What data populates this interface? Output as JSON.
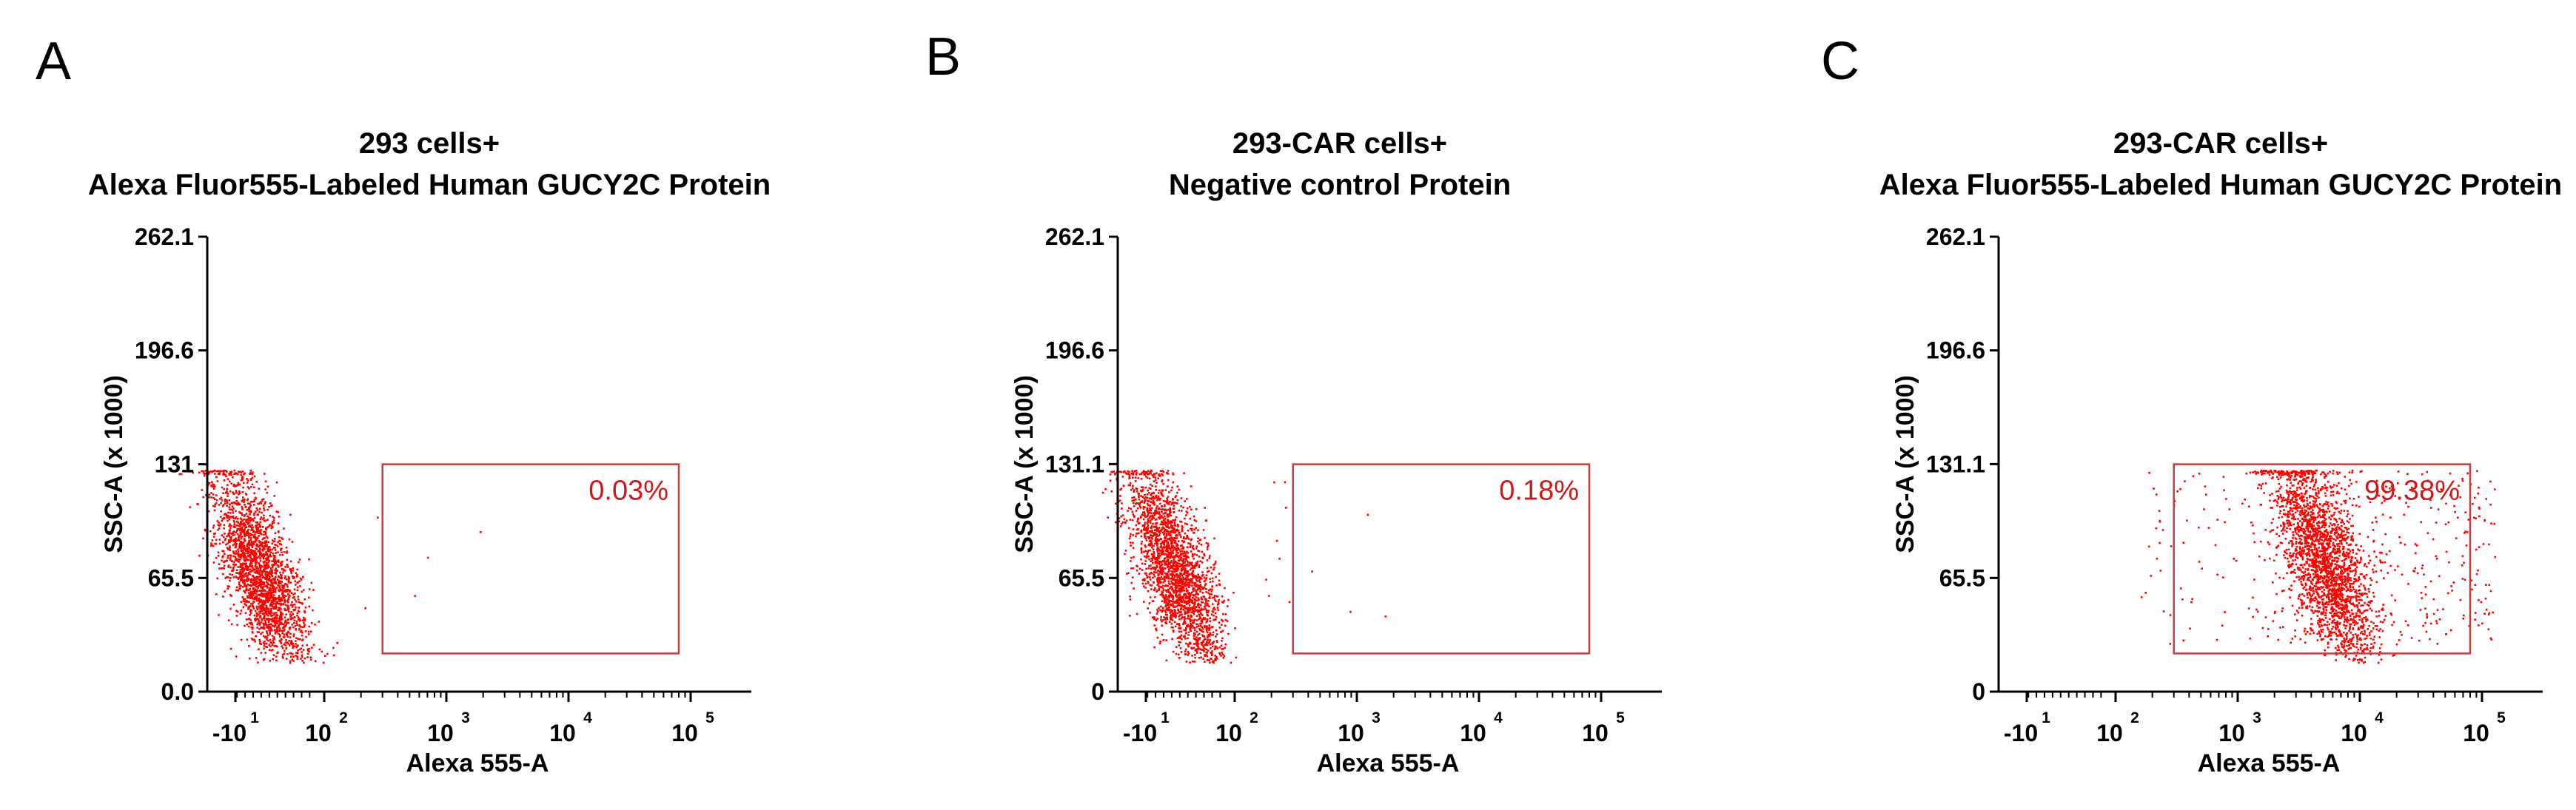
{
  "colors": {
    "dots": "#ff0000",
    "gate": "#c04040",
    "gate_text": "#d01818",
    "axis": "#000000"
  },
  "chart_data": [
    {
      "panel": "A",
      "type": "scatter",
      "title_line1": "293 cells+",
      "title_line2": "Alexa Fluor555-Labeled Human GUCY2C Protein",
      "xlabel": "Alexa 555-A",
      "ylabel": "SSC-A (x 1000)",
      "x_scale": "biexponential",
      "y_ticks": [
        "262.1",
        "196.6",
        "131",
        "65.5",
        "0.0"
      ],
      "y_tick_values": [
        262.1,
        196.6,
        131.0,
        65.5,
        0.0
      ],
      "ylim": [
        0,
        262.1
      ],
      "x_ticks": [
        {
          "base": "-10",
          "exp": "1",
          "value": -10
        },
        {
          "base": "10",
          "exp": "2",
          "value": 100
        },
        {
          "base": "10",
          "exp": "3",
          "value": 1000
        },
        {
          "base": "10",
          "exp": "4",
          "value": 10000
        },
        {
          "base": "10",
          "exp": "5",
          "value": 100000
        }
      ],
      "gate": {
        "label": "0.03%",
        "x_range": [
          300,
          80000
        ],
        "y_range": [
          22,
          131
        ]
      },
      "population": {
        "center_x": 20,
        "center_y": 68,
        "events": 2400
      }
    },
    {
      "panel": "B",
      "type": "scatter",
      "title_line1": "293-CAR cells+",
      "title_line2": "Negative control Protein",
      "xlabel": "Alexa 555-A",
      "ylabel": "SSC-A (x 1000)",
      "x_scale": "biexponential",
      "y_ticks": [
        "262.1",
        "196.6",
        "131.1",
        "65.5",
        "0"
      ],
      "y_tick_values": [
        262.1,
        196.6,
        131.1,
        65.5,
        0
      ],
      "ylim": [
        0,
        262.1
      ],
      "x_ticks": [
        {
          "base": "-10",
          "exp": "1",
          "value": -10
        },
        {
          "base": "10",
          "exp": "2",
          "value": 100
        },
        {
          "base": "10",
          "exp": "3",
          "value": 1000
        },
        {
          "base": "10",
          "exp": "4",
          "value": 10000
        },
        {
          "base": "10",
          "exp": "5",
          "value": 100000
        }
      ],
      "gate": {
        "label": "0.18%",
        "x_range": [
          300,
          80000
        ],
        "y_range": [
          22,
          131
        ]
      },
      "population": {
        "center_x": 25,
        "center_y": 70,
        "events": 2400
      }
    },
    {
      "panel": "C",
      "type": "scatter",
      "title_line1": "293-CAR cells+",
      "title_line2": "Alexa Fluor555-Labeled Human GUCY2C Protein",
      "xlabel": "Alexa 555-A",
      "ylabel": "SSC-A (x 1000)",
      "x_scale": "biexponential",
      "y_ticks": [
        "262.1",
        "196.6",
        "131.1",
        "65.5",
        "0"
      ],
      "y_tick_values": [
        262.1,
        196.6,
        131.1,
        65.5,
        0
      ],
      "ylim": [
        0,
        262.1
      ],
      "x_ticks": [
        {
          "base": "-10",
          "exp": "1",
          "value": -10
        },
        {
          "base": "10",
          "exp": "2",
          "value": 100
        },
        {
          "base": "10",
          "exp": "3",
          "value": 1000
        },
        {
          "base": "10",
          "exp": "4",
          "value": 10000
        },
        {
          "base": "10",
          "exp": "5",
          "value": 100000
        }
      ],
      "gate": {
        "label": "99.38%",
        "x_range": [
          300,
          80000
        ],
        "y_range": [
          22,
          131
        ]
      },
      "population": {
        "center_x": 5000,
        "center_y": 75,
        "events": 2400
      }
    }
  ]
}
